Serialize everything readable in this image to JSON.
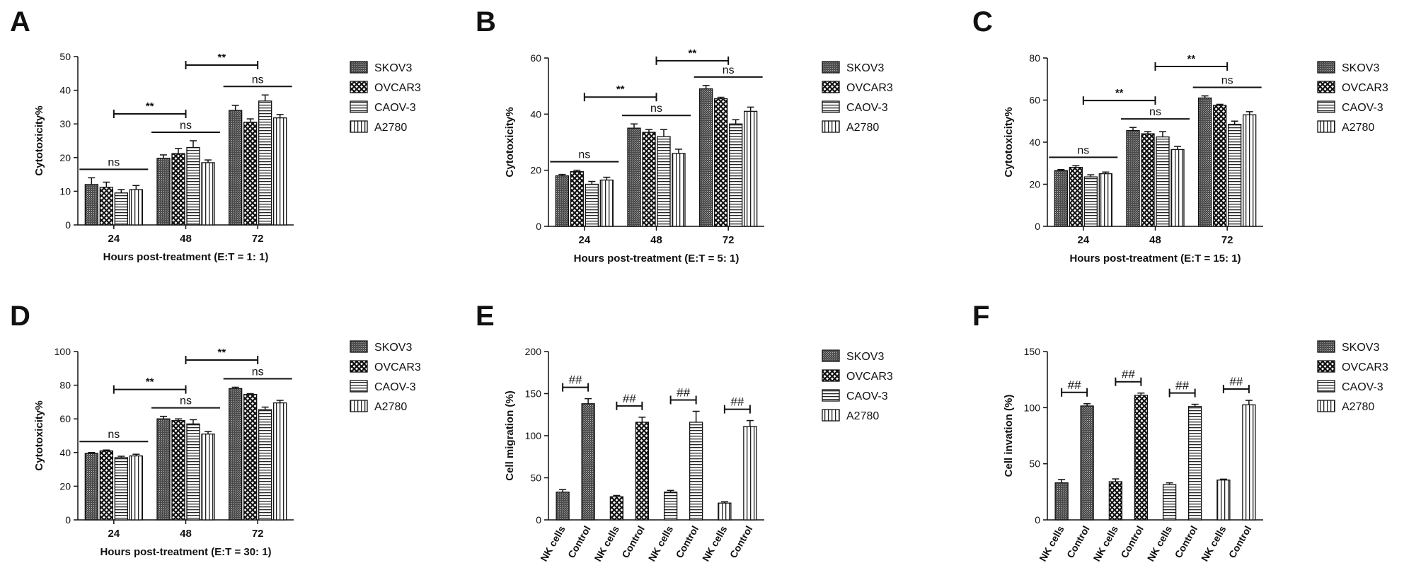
{
  "legend_labels": [
    "SKOV3",
    "OVCAR3",
    "CAOV-3",
    "A2780"
  ],
  "chart_data": [
    {
      "panel": "A",
      "type": "bar",
      "ylabel": "Cytotoxicity%",
      "xlabel": "Hours post-treatment (E:T = 1: 1)",
      "ylim": [
        0,
        50
      ],
      "yticks": [
        0,
        10,
        20,
        30,
        40,
        50
      ],
      "categories": [
        "24",
        "48",
        "72"
      ],
      "series": [
        {
          "name": "SKOV3",
          "values": [
            12,
            19.8,
            34
          ],
          "errors": [
            2,
            1,
            1.5
          ]
        },
        {
          "name": "OVCAR3",
          "values": [
            11.2,
            21.2,
            30.5
          ],
          "errors": [
            1.5,
            1.5,
            1
          ]
        },
        {
          "name": "CAOV-3",
          "values": [
            9.5,
            23,
            36.8
          ],
          "errors": [
            1,
            2,
            1.8
          ]
        },
        {
          "name": "A2780",
          "values": [
            10.5,
            18.5,
            31.8
          ],
          "errors": [
            1.2,
            0.8,
            1
          ]
        }
      ],
      "annotations": [
        {
          "text": "ns",
          "group": 0
        },
        {
          "text": "ns",
          "group": 1
        },
        {
          "text": "ns",
          "group": 2
        },
        {
          "text": "**",
          "from": 0,
          "to": 1
        },
        {
          "text": "**",
          "from": 1,
          "to": 2
        }
      ]
    },
    {
      "panel": "B",
      "type": "bar",
      "ylabel": "Cytotoxicity%",
      "xlabel": "Hours post-treatment (E:T = 5: 1)",
      "ylim": [
        0,
        60
      ],
      "yticks": [
        0,
        20,
        40,
        60
      ],
      "categories": [
        "24",
        "48",
        "72"
      ],
      "series": [
        {
          "name": "SKOV3",
          "values": [
            18,
            35,
            49
          ],
          "errors": [
            0.5,
            1.5,
            1.2
          ]
        },
        {
          "name": "OVCAR3",
          "values": [
            19.5,
            33.5,
            45.5
          ],
          "errors": [
            0.5,
            1,
            0.5
          ]
        },
        {
          "name": "CAOV-3",
          "values": [
            15,
            32,
            36.5
          ],
          "errors": [
            1,
            2.5,
            1.5
          ]
        },
        {
          "name": "A2780",
          "values": [
            16.5,
            26,
            41
          ],
          "errors": [
            1,
            1.5,
            1.5
          ]
        }
      ],
      "annotations": [
        {
          "text": "ns",
          "group": 0
        },
        {
          "text": "ns",
          "group": 1
        },
        {
          "text": "ns",
          "group": 2
        },
        {
          "text": "**",
          "from": 0,
          "to": 1
        },
        {
          "text": "**",
          "from": 1,
          "to": 2
        }
      ]
    },
    {
      "panel": "C",
      "type": "bar",
      "ylabel": "Cytotoxicity%",
      "xlabel": "Hours post-treatment (E:T = 15: 1)",
      "ylim": [
        0,
        80
      ],
      "yticks": [
        0,
        20,
        40,
        60,
        80
      ],
      "categories": [
        "24",
        "48",
        "72"
      ],
      "series": [
        {
          "name": "SKOV3",
          "values": [
            26.5,
            45.5,
            61
          ],
          "errors": [
            0.5,
            1.5,
            1
          ]
        },
        {
          "name": "OVCAR3",
          "values": [
            28,
            44,
            57.5
          ],
          "errors": [
            0.8,
            1,
            0.5
          ]
        },
        {
          "name": "CAOV-3",
          "values": [
            23.5,
            42.5,
            48.5
          ],
          "errors": [
            1,
            2.5,
            1.5
          ]
        },
        {
          "name": "A2780",
          "values": [
            25,
            36.5,
            53
          ],
          "errors": [
            0.8,
            1.5,
            1.5
          ]
        }
      ],
      "annotations": [
        {
          "text": "ns",
          "group": 0
        },
        {
          "text": "ns",
          "group": 1
        },
        {
          "text": "ns",
          "group": 2
        },
        {
          "text": "**",
          "from": 0,
          "to": 1
        },
        {
          "text": "**",
          "from": 1,
          "to": 2
        }
      ]
    },
    {
      "panel": "D",
      "type": "bar",
      "ylabel": "Cytotoxicity%",
      "xlabel": "Hours post-treatment (E:T = 30: 1)",
      "ylim": [
        0,
        100
      ],
      "yticks": [
        0,
        20,
        40,
        60,
        80,
        100
      ],
      "categories": [
        "24",
        "48",
        "72"
      ],
      "series": [
        {
          "name": "SKOV3",
          "values": [
            39.5,
            60,
            78
          ],
          "errors": [
            0.5,
            1.5,
            0.8
          ]
        },
        {
          "name": "OVCAR3",
          "values": [
            41,
            59,
            74.5
          ],
          "errors": [
            0.5,
            1,
            0.5
          ]
        },
        {
          "name": "CAOV-3",
          "values": [
            37,
            57,
            65.5
          ],
          "errors": [
            0.8,
            2.5,
            1.5
          ]
        },
        {
          "name": "A2780",
          "values": [
            38,
            51,
            69.5
          ],
          "errors": [
            1,
            1.5,
            1.5
          ]
        }
      ],
      "annotations": [
        {
          "text": "ns",
          "group": 0
        },
        {
          "text": "ns",
          "group": 1
        },
        {
          "text": "ns",
          "group": 2
        },
        {
          "text": "**",
          "from": 0,
          "to": 1
        },
        {
          "text": "**",
          "from": 1,
          "to": 2
        }
      ]
    },
    {
      "panel": "E",
      "type": "bar",
      "ylabel": "Cell migration (%)",
      "xlabel": "",
      "ylim": [
        0,
        200
      ],
      "yticks": [
        0,
        50,
        100,
        150,
        200
      ],
      "groups": [
        {
          "series": "SKOV3",
          "categories": [
            "NK cells",
            "Control"
          ],
          "values": [
            33,
            138
          ],
          "errors": [
            3,
            6
          ]
        },
        {
          "series": "OVCAR3",
          "categories": [
            "NK cells",
            "Control"
          ],
          "values": [
            27.5,
            116
          ],
          "errors": [
            1.5,
            6
          ]
        },
        {
          "series": "CAOV-3",
          "categories": [
            "NK cells",
            "Control"
          ],
          "values": [
            33,
            116
          ],
          "errors": [
            2,
            13
          ]
        },
        {
          "series": "A2780",
          "categories": [
            "NK cells",
            "Control"
          ],
          "values": [
            20,
            111
          ],
          "errors": [
            1.5,
            7
          ]
        }
      ],
      "annotation": "##"
    },
    {
      "panel": "F",
      "type": "bar",
      "ylabel": "Cell invation (%)",
      "xlabel": "",
      "ylim": [
        0,
        150
      ],
      "yticks": [
        0,
        50,
        100,
        150
      ],
      "groups": [
        {
          "series": "SKOV3",
          "categories": [
            "NK cells",
            "Control"
          ],
          "values": [
            33,
            101.5
          ],
          "errors": [
            3,
            2
          ]
        },
        {
          "series": "OVCAR3",
          "categories": [
            "NK cells",
            "Control"
          ],
          "values": [
            34,
            111
          ],
          "errors": [
            2.5,
            2
          ]
        },
        {
          "series": "CAOV-3",
          "categories": [
            "NK cells",
            "Control"
          ],
          "values": [
            31.5,
            101
          ],
          "errors": [
            1.5,
            2
          ]
        },
        {
          "series": "A2780",
          "categories": [
            "NK cells",
            "Control"
          ],
          "values": [
            35.5,
            102.5
          ],
          "errors": [
            0.8,
            4
          ]
        }
      ],
      "annotation": "##"
    }
  ]
}
